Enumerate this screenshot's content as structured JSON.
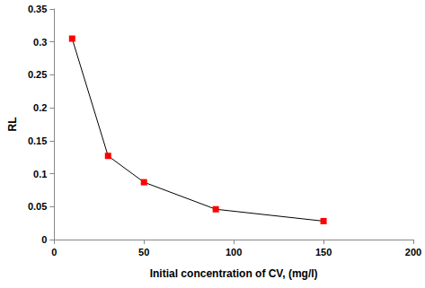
{
  "chart_data": {
    "type": "line",
    "x_label": "Initial concentration of CV, (mg/l)",
    "y_label": "RL",
    "x": [
      10,
      30,
      50,
      90,
      150
    ],
    "series": [
      {
        "name": "RL",
        "color": "#ff0000",
        "marker": "square",
        "line_style": "solid",
        "values": [
          0.305,
          0.127,
          0.087,
          0.046,
          0.028
        ]
      }
    ],
    "xlim": [
      0,
      200
    ],
    "xticks": [
      0,
      50,
      100,
      150,
      200
    ],
    "ylim": [
      0,
      0.35
    ],
    "yticks": [
      0,
      0.05,
      0.1,
      0.15,
      0.2,
      0.25,
      0.3,
      0.35
    ],
    "grid": false
  }
}
